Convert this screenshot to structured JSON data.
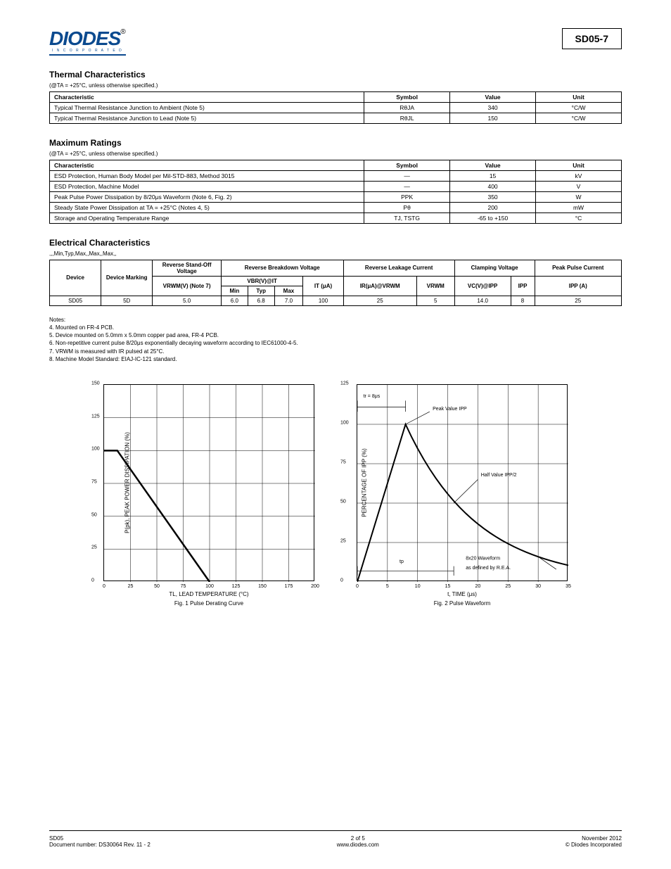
{
  "header": {
    "logo_main": "DIODES",
    "logo_sub": "I N C O R P O R A T E D",
    "reg": "®",
    "part_number": "SD05-7"
  },
  "sec1": {
    "title": "Thermal Characteristics",
    "sub": "(@TA = +25°C, unless otherwise specified.)",
    "headers": [
      "Characteristic",
      "Symbol",
      "Value",
      "Unit"
    ],
    "rows": [
      [
        "Typical Thermal Resistance Junction to Ambient (Note 5)",
        "RθJA",
        "340",
        "°C/W"
      ],
      [
        "Typical Thermal Resistance Junction to Lead (Note 5)",
        "RθJL",
        "150",
        "°C/W"
      ]
    ]
  },
  "sec2": {
    "title": "Maximum Ratings",
    "sub": "(@TA = +25°C, unless otherwise specified.)",
    "headers": [
      "Characteristic",
      "Symbol",
      "Value",
      "Unit"
    ],
    "rows": [
      [
        "ESD Protection, Human Body Model per Mil-STD-883, Method 3015",
        "—",
        "15",
        "kV"
      ],
      [
        "ESD Protection, Machine Model",
        "—",
        "400",
        "V"
      ],
      [
        "Peak Pulse Power Dissipation by 8/20μs Waveform (Note 6, Fig. 2)",
        "PPK",
        "350",
        "W"
      ],
      [
        "Steady State Power Dissipation at TA = +25°C (Notes 4, 5)",
        "Pθ",
        "200",
        "mW"
      ],
      [
        "Storage and Operating Temperature Range",
        "TJ, TSTG",
        "-65 to +150",
        "°C"
      ]
    ]
  },
  "sec3": {
    "title": "Electrical Characteristics",
    "sub": [
      "",
      "",
      "",
      "Min",
      "Typ",
      "Max",
      "",
      "Max",
      "",
      "Max",
      "",
      ""
    ],
    "top": [
      "Device",
      "Device Marking",
      "Reverse Stand-Off Voltage",
      "Reverse Breakdown Voltage",
      "Reverse Leakage Current",
      "Clamping Voltage",
      "Peak Pulse Current"
    ],
    "mid": [
      "",
      "",
      "VRWM(V) (Note 7)",
      "VBR(V)@IT",
      "IT (μA)",
      "IR(μA)@VRWM",
      "VC(V)@IPP",
      "IPP (A)"
    ],
    "row": [
      "SD05",
      "5D",
      "5.0",
      "6.0",
      "6.8",
      "7.0",
      "100",
      "25",
      "5",
      "14.0",
      "8",
      "25"
    ]
  },
  "notes": {
    "title": "Notes:",
    "n4": "4. Mounted on FR-4 PCB.",
    "n5": "5. Device mounted on 5.0mm x 5.0mm copper pad area, FR-4 PCB.",
    "n6": "6. Non-repetitive current pulse 8/20μs exponentially decaying waveform according to IEC61000-4-5.",
    "n7": "7. VRWM is measured with IR pulsed at 25°C.",
    "n8": "8. Machine Model Standard: EIAJ-IC-121 standard."
  },
  "fig1": {
    "ylabel": "P(pk), PEAK POWER DISSIPATION (%)",
    "xlabel": "TL, LEAD TEMPERATURE (°C)",
    "title": "Fig. 1 Pulse Derating Curve",
    "xticks": [
      "0",
      "25",
      "50",
      "75",
      "100",
      "125",
      "150",
      "175",
      "200"
    ],
    "yticks": [
      "0",
      "25",
      "50",
      "75",
      "100",
      "125",
      "150"
    ],
    "line": [
      [
        0,
        100
      ],
      [
        12.5,
        100
      ],
      [
        100,
        0
      ]
    ]
  },
  "fig2": {
    "ylabel": "PERCENTAGE OF IPP (%)",
    "xlabel": "t, TIME (μs)",
    "title": "Fig. 2 Pulse Waveform",
    "xticks": [
      "0",
      "5",
      "10",
      "15",
      "20",
      "25",
      "30",
      "35"
    ],
    "yticks": [
      "0",
      "25",
      "50",
      "75",
      "100",
      "125"
    ],
    "tr_label": "tr = 8μs",
    "peak_label": "Peak Value IPP",
    "half_label": "Half Value IPP/2",
    "tp_label": "tp",
    "wave_label": "8x20 Waveform",
    "wave_label2": "as defined by R.E.A."
  },
  "footer": {
    "left1": "SD05",
    "left2": "Document number: DS30064 Rev. 11 - 2",
    "center1": "2 of 5",
    "center2": "www.diodes.com",
    "right1": "November 2012",
    "right2": "© Diodes Incorporated"
  }
}
